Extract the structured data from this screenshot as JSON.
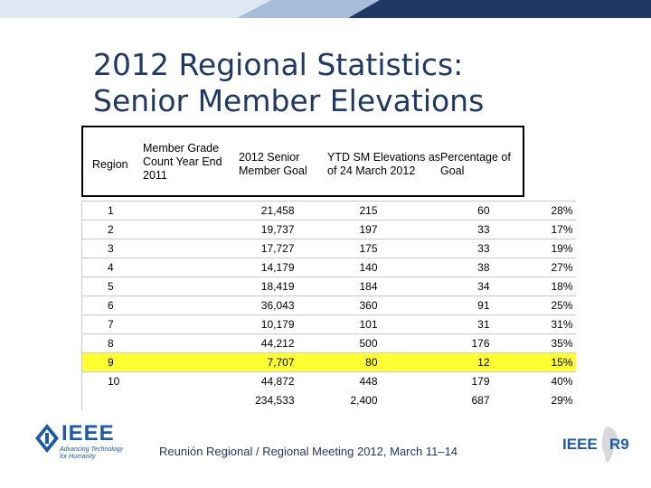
{
  "slide": {
    "title_line1": "2012 Regional Statistics:",
    "title_line2": "Senior Member Elevations"
  },
  "table": {
    "headers": {
      "region": "Region",
      "count_l1": "Member Grade",
      "count_l2": "Count Year End",
      "count_l3": "2011",
      "goal_l1": "2012 Senior",
      "goal_l2": "Member Goal",
      "ytd_l1": "YTD SM Elevations as",
      "ytd_l2": "of 24 March 2012",
      "pct_l1": "Percentage of",
      "pct_l2": "Goal"
    },
    "rows": [
      {
        "region": "1",
        "count": "21,458",
        "goal": "215",
        "ytd": "60",
        "pct": "28%"
      },
      {
        "region": "2",
        "count": "19,737",
        "goal": "197",
        "ytd": "33",
        "pct": "17%"
      },
      {
        "region": "3",
        "count": "17,727",
        "goal": "175",
        "ytd": "33",
        "pct": "19%"
      },
      {
        "region": "4",
        "count": "14,179",
        "goal": "140",
        "ytd": "38",
        "pct": "27%"
      },
      {
        "region": "5",
        "count": "18,419",
        "goal": "184",
        "ytd": "34",
        "pct": "18%"
      },
      {
        "region": "6",
        "count": "36,043",
        "goal": "360",
        "ytd": "91",
        "pct": "25%"
      },
      {
        "region": "7",
        "count": "10,179",
        "goal": "101",
        "ytd": "31",
        "pct": "31%"
      },
      {
        "region": "8",
        "count": "44,212",
        "goal": "500",
        "ytd": "176",
        "pct": "35%"
      },
      {
        "region": "9",
        "count": "7,707",
        "goal": "80",
        "ytd": "12",
        "pct": "15%"
      },
      {
        "region": "10",
        "count": "44,872",
        "goal": "448",
        "ytd": "179",
        "pct": "40%"
      }
    ],
    "total": {
      "region": "",
      "count": "234,533",
      "goal": "2,400",
      "ytd": "687",
      "pct": "29%"
    },
    "highlight_color": "#ffff33"
  },
  "footer": {
    "text": "Reunión Regional / Regional Meeting 2012, March 11–14"
  },
  "logos": {
    "ieee_text": "IEEE",
    "ieee_tagline_l1": "Advancing Technology",
    "ieee_tagline_l2": "for Humanity",
    "r9_ieee": "IEEE",
    "r9_label": "R9"
  },
  "colors": {
    "title": "#1f3864",
    "topbar_dark": "#1f3864",
    "topbar_light": "#cdd9ec",
    "ieee_blue": "#1e5aa8"
  }
}
